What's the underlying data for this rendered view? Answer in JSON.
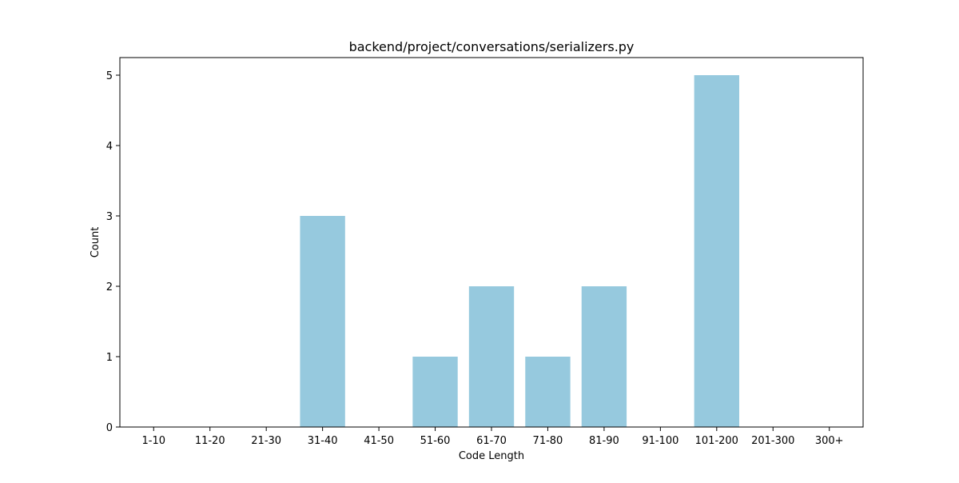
{
  "chart_data": {
    "type": "bar",
    "title": "backend/project/conversations/serializers.py",
    "xlabel": "Code Length",
    "ylabel": "Count",
    "categories": [
      "1-10",
      "11-20",
      "21-30",
      "31-40",
      "41-50",
      "51-60",
      "61-70",
      "71-80",
      "81-90",
      "91-100",
      "101-200",
      "201-300",
      "300+"
    ],
    "values": [
      0,
      0,
      0,
      3,
      0,
      1,
      2,
      1,
      2,
      0,
      5,
      0,
      0
    ],
    "ylim": [
      0,
      5.25
    ],
    "yticks": [
      0,
      1,
      2,
      3,
      4,
      5
    ],
    "grid": false,
    "legend": "none",
    "bar_color": "#96c9de"
  }
}
